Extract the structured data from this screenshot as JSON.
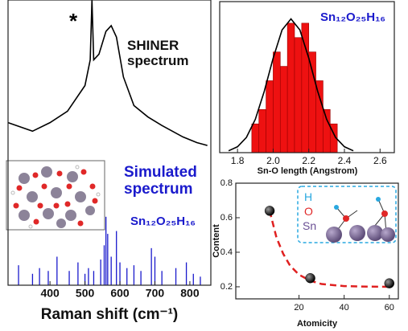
{
  "chart_data": [
    {
      "type": "line",
      "xlabel": "Raman shift (cm⁻¹)",
      "xlim": [
        280,
        860
      ],
      "xticks": [
        400,
        500,
        600,
        700,
        800
      ],
      "ylim": [
        0,
        1
      ],
      "annotations": [
        "*",
        "SHINER spectrum",
        "Simulated spectrum",
        "Sn₁₂O₂₅H₁₆"
      ],
      "series": [
        {
          "style": "line",
          "color": "#000000",
          "x": [
            280,
            350,
            400,
            450,
            500,
            515,
            520,
            525,
            540,
            560,
            575,
            590,
            610,
            640,
            680,
            720,
            780,
            820,
            850
          ],
          "values": [
            0.57,
            0.54,
            0.57,
            0.61,
            0.7,
            0.79,
            1.0,
            0.79,
            0.81,
            0.89,
            0.91,
            0.87,
            0.73,
            0.63,
            0.59,
            0.56,
            0.52,
            0.5,
            0.49
          ]
        },
        {
          "style": "stem",
          "color": "#1a1acc",
          "x": [
            310,
            350,
            370,
            395,
            420,
            455,
            480,
            500,
            510,
            525,
            545,
            555,
            560,
            565,
            575,
            590,
            600,
            620,
            640,
            660,
            690,
            700,
            720,
            760,
            790,
            810,
            830
          ],
          "values": [
            0.07,
            0.04,
            0.06,
            0.05,
            0.1,
            0.05,
            0.08,
            0.04,
            0.06,
            0.05,
            0.09,
            0.14,
            0.24,
            0.18,
            0.1,
            0.19,
            0.08,
            0.06,
            0.07,
            0.05,
            0.13,
            0.1,
            0.05,
            0.06,
            0.08,
            0.04,
            0.03
          ]
        }
      ]
    },
    {
      "type": "histogram",
      "xlabel": "Sn-O length (Angstrom)",
      "xlim": [
        1.7,
        2.68
      ],
      "xticks": [
        1.8,
        {
          "value": 2.0,
          "label": "2.0"
        },
        2.2,
        2.4,
        2.6
      ],
      "ylim": [
        0,
        10.5
      ],
      "annotations": [
        "Sn₁₂O₂₅H₁₆"
      ],
      "bins": [
        1.88,
        1.92,
        1.96,
        2.0,
        2.04,
        2.08,
        2.12,
        2.16,
        2.2,
        2.24,
        2.28,
        2.32,
        2.36
      ],
      "counts": [
        2,
        3,
        5,
        7,
        6,
        9,
        8,
        9,
        7,
        5,
        3,
        2
      ],
      "color": "#ee1111",
      "series": [
        {
          "style": "line",
          "color": "#000000",
          "x": [
            1.75,
            1.8,
            1.85,
            1.9,
            1.95,
            2.0,
            2.05,
            2.1,
            2.15,
            2.2,
            2.25,
            2.3,
            2.35,
            2.4,
            2.45
          ],
          "values": [
            0.13,
            0.41,
            1.06,
            2.32,
            4.26,
            6.57,
            8.53,
            9.3,
            8.53,
            6.57,
            4.26,
            2.32,
            1.06,
            0.41,
            0.13
          ]
        }
      ]
    },
    {
      "type": "scatter",
      "xlabel": "Atomicity",
      "ylabel": "Content",
      "xlim": [
        -8,
        64
      ],
      "xticks": [
        20,
        40,
        60
      ],
      "ylim": [
        0.13,
        0.8
      ],
      "yticks": [
        0.2,
        0.4,
        0.6,
        0.8
      ],
      "annotations": [
        "H",
        "O",
        "Sn"
      ],
      "series": [
        {
          "style": "dashed",
          "color": "#e02020",
          "x": [
            7,
            10,
            13,
            16,
            20,
            25,
            30,
            40,
            50,
            60
          ],
          "values": [
            0.64,
            0.486,
            0.391,
            0.323,
            0.27,
            0.235,
            0.216,
            0.204,
            0.201,
            0.2
          ]
        },
        {
          "style": "marker",
          "color": "#111111",
          "x": [
            7,
            25,
            60
          ],
          "values": [
            0.64,
            0.25,
            0.22
          ]
        }
      ]
    }
  ]
}
